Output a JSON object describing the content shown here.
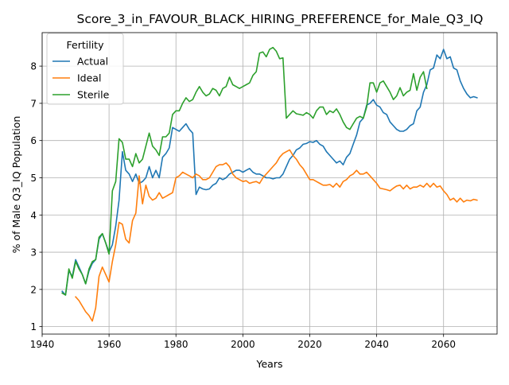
{
  "chart_data": {
    "type": "line",
    "title": "Score_3_in_FAVOUR_BLACK_HIRING_PREFERENCE_for_Male_Q3_IQ",
    "xlabel": "Years",
    "ylabel": "% of Male Q3_IQ Population",
    "xlim": [
      1940,
      2076
    ],
    "ylim": [
      0.8,
      8.9
    ],
    "xticks": [
      1940,
      1960,
      1980,
      2000,
      2020,
      2040,
      2060
    ],
    "yticks": [
      1,
      2,
      3,
      4,
      5,
      6,
      7,
      8
    ],
    "grid": true,
    "legend": {
      "title": "Fertility",
      "position": "top-left"
    },
    "series": [
      {
        "name": "Actual",
        "color": "#1f77b4",
        "x": [
          1946,
          1947,
          1948,
          1949,
          1950,
          1951,
          1952,
          1953,
          1954,
          1955,
          1956,
          1957,
          1958,
          1959,
          1960,
          1961,
          1962,
          1963,
          1964,
          1965,
          1966,
          1967,
          1968,
          1969,
          1970,
          1971,
          1972,
          1973,
          1974,
          1975,
          1976,
          1977,
          1978,
          1979,
          1980,
          1981,
          1982,
          1983,
          1984,
          1985,
          1986,
          1987,
          1988,
          1989,
          1990,
          1991,
          1992,
          1993,
          1994,
          1995,
          1996,
          1997,
          1998,
          1999,
          2000,
          2001,
          2002,
          2003,
          2004,
          2005,
          2006,
          2007,
          2008,
          2009,
          2010,
          2011,
          2012,
          2013,
          2014,
          2015,
          2016,
          2017,
          2018,
          2019,
          2020,
          2021,
          2022,
          2023,
          2024,
          2025,
          2026,
          2027,
          2028,
          2029,
          2030,
          2031,
          2032,
          2033,
          2034,
          2035,
          2036,
          2037,
          2038,
          2039,
          2040,
          2041,
          2042,
          2043,
          2044,
          2045,
          2046,
          2047,
          2048,
          2049,
          2050,
          2051,
          2052,
          2053,
          2054,
          2055,
          2056,
          2057,
          2058,
          2059,
          2060,
          2061,
          2062,
          2063,
          2064,
          2065,
          2066,
          2067,
          2068,
          2069,
          2070
        ],
        "values": [
          1.95,
          1.85,
          2.5,
          2.35,
          2.8,
          2.6,
          2.4,
          2.15,
          2.5,
          2.7,
          2.8,
          3.35,
          3.5,
          3.25,
          3.0,
          3.2,
          3.7,
          4.4,
          5.7,
          5.2,
          5.1,
          4.9,
          5.1,
          4.85,
          4.9,
          5.0,
          5.3,
          5.0,
          5.2,
          5.0,
          5.55,
          5.65,
          5.8,
          6.35,
          6.3,
          6.25,
          6.35,
          6.45,
          6.3,
          6.2,
          4.55,
          4.75,
          4.7,
          4.68,
          4.7,
          4.8,
          4.85,
          5.0,
          4.95,
          5.0,
          5.1,
          5.15,
          5.2,
          5.2,
          5.15,
          5.2,
          5.25,
          5.15,
          5.1,
          5.1,
          5.05,
          5.0,
          5.0,
          4.97,
          5.0,
          5.0,
          5.1,
          5.3,
          5.5,
          5.6,
          5.75,
          5.8,
          5.9,
          5.92,
          5.97,
          5.95,
          6.0,
          5.9,
          5.85,
          5.7,
          5.6,
          5.5,
          5.4,
          5.45,
          5.35,
          5.55,
          5.65,
          5.9,
          6.15,
          6.5,
          6.6,
          6.95,
          7.0,
          7.1,
          6.95,
          6.9,
          6.75,
          6.7,
          6.5,
          6.4,
          6.3,
          6.25,
          6.25,
          6.3,
          6.4,
          6.45,
          6.8,
          6.9,
          7.3,
          7.5,
          7.9,
          7.95,
          8.3,
          8.2,
          8.45,
          8.2,
          8.25,
          7.95,
          7.9,
          7.6,
          7.4,
          7.25,
          7.15,
          7.18,
          7.15
        ]
      },
      {
        "name": "Ideal",
        "color": "#ff7f0e",
        "x": [
          1950,
          1951,
          1952,
          1953,
          1954,
          1955,
          1956,
          1957,
          1958,
          1959,
          1960,
          1961,
          1962,
          1963,
          1964,
          1965,
          1966,
          1967,
          1968,
          1969,
          1970,
          1971,
          1972,
          1973,
          1974,
          1975,
          1976,
          1977,
          1978,
          1979,
          1980,
          1981,
          1982,
          1983,
          1984,
          1985,
          1986,
          1987,
          1988,
          1989,
          1990,
          1991,
          1992,
          1993,
          1994,
          1995,
          1996,
          1997,
          1998,
          1999,
          2000,
          2001,
          2002,
          2003,
          2004,
          2005,
          2006,
          2007,
          2008,
          2009,
          2010,
          2011,
          2012,
          2013,
          2014,
          2015,
          2016,
          2017,
          2018,
          2019,
          2020,
          2021,
          2022,
          2023,
          2024,
          2025,
          2026,
          2027,
          2028,
          2029,
          2030,
          2031,
          2032,
          2033,
          2034,
          2035,
          2036,
          2037,
          2038,
          2039,
          2040,
          2041,
          2042,
          2043,
          2044,
          2045,
          2046,
          2047,
          2048,
          2049,
          2050,
          2051,
          2052,
          2053,
          2054,
          2055,
          2056,
          2057,
          2058,
          2059,
          2060,
          2061,
          2062,
          2063,
          2064,
          2065,
          2066,
          2067,
          2068,
          2069,
          2070
        ],
        "values": [
          1.8,
          1.7,
          1.55,
          1.4,
          1.3,
          1.15,
          1.5,
          2.35,
          2.6,
          2.4,
          2.2,
          2.75,
          3.2,
          3.8,
          3.75,
          3.35,
          3.25,
          3.85,
          4.05,
          5.05,
          4.3,
          4.8,
          4.5,
          4.4,
          4.45,
          4.6,
          4.45,
          4.5,
          4.55,
          4.6,
          5.0,
          5.05,
          5.15,
          5.1,
          5.05,
          5.0,
          5.1,
          5.05,
          4.95,
          4.95,
          5.0,
          5.15,
          5.3,
          5.35,
          5.35,
          5.4,
          5.3,
          5.1,
          5.0,
          4.95,
          4.9,
          4.92,
          4.85,
          4.88,
          4.9,
          4.85,
          5.0,
          5.1,
          5.2,
          5.3,
          5.4,
          5.55,
          5.65,
          5.7,
          5.75,
          5.6,
          5.5,
          5.35,
          5.25,
          5.1,
          4.95,
          4.95,
          4.9,
          4.85,
          4.8,
          4.8,
          4.82,
          4.75,
          4.85,
          4.75,
          4.9,
          4.95,
          5.05,
          5.1,
          5.2,
          5.1,
          5.1,
          5.15,
          5.05,
          4.95,
          4.85,
          4.72,
          4.7,
          4.68,
          4.65,
          4.72,
          4.78,
          4.8,
          4.7,
          4.8,
          4.7,
          4.75,
          4.75,
          4.8,
          4.75,
          4.85,
          4.75,
          4.85,
          4.75,
          4.78,
          4.65,
          4.55,
          4.4,
          4.45,
          4.35,
          4.45,
          4.35,
          4.4,
          4.38,
          4.42,
          4.4
        ]
      },
      {
        "name": "Sterile",
        "color": "#2ca02c",
        "x": [
          1946,
          1947,
          1948,
          1949,
          1950,
          1951,
          1952,
          1953,
          1954,
          1955,
          1956,
          1957,
          1958,
          1959,
          1960,
          1961,
          1962,
          1963,
          1964,
          1965,
          1966,
          1967,
          1968,
          1969,
          1970,
          1971,
          1972,
          1973,
          1974,
          1975,
          1976,
          1977,
          1978,
          1979,
          1980,
          1981,
          1982,
          1983,
          1984,
          1985,
          1986,
          1987,
          1988,
          1989,
          1990,
          1991,
          1992,
          1993,
          1994,
          1995,
          1996,
          1997,
          1998,
          1999,
          2000,
          2001,
          2002,
          2003,
          2004,
          2005,
          2006,
          2007,
          2008,
          2009,
          2010,
          2011,
          2012,
          2013,
          2014,
          2015,
          2016,
          2017,
          2018,
          2019,
          2020,
          2021,
          2022,
          2023,
          2024,
          2025,
          2026,
          2027,
          2028,
          2029,
          2030,
          2031,
          2032,
          2033,
          2034,
          2035,
          2036,
          2037,
          2038,
          2039,
          2040,
          2041,
          2042,
          2043,
          2044,
          2045,
          2046,
          2047,
          2048,
          2049,
          2050,
          2051,
          2052,
          2053,
          2054,
          2055
        ],
        "values": [
          1.9,
          1.85,
          2.55,
          2.3,
          2.75,
          2.55,
          2.4,
          2.15,
          2.55,
          2.75,
          2.8,
          3.4,
          3.5,
          3.25,
          2.95,
          4.65,
          4.9,
          6.05,
          5.95,
          5.5,
          5.5,
          5.3,
          5.65,
          5.4,
          5.5,
          5.85,
          6.2,
          5.85,
          5.75,
          5.6,
          6.1,
          6.1,
          6.2,
          6.7,
          6.8,
          6.8,
          7.0,
          7.15,
          7.05,
          7.1,
          7.3,
          7.45,
          7.3,
          7.2,
          7.25,
          7.4,
          7.35,
          7.2,
          7.4,
          7.45,
          7.7,
          7.5,
          7.45,
          7.4,
          7.45,
          7.5,
          7.55,
          7.75,
          7.85,
          8.35,
          8.38,
          8.25,
          8.45,
          8.5,
          8.4,
          8.2,
          8.22,
          6.6,
          6.7,
          6.8,
          6.72,
          6.7,
          6.68,
          6.75,
          6.7,
          6.6,
          6.8,
          6.9,
          6.9,
          6.7,
          6.8,
          6.75,
          6.85,
          6.7,
          6.5,
          6.35,
          6.3,
          6.45,
          6.6,
          6.65,
          6.6,
          6.9,
          7.55,
          7.55,
          7.3,
          7.55,
          7.6,
          7.45,
          7.3,
          7.1,
          7.2,
          7.42,
          7.2,
          7.3,
          7.35,
          7.8,
          7.35,
          7.7,
          7.85,
          7.4
        ]
      }
    ]
  }
}
